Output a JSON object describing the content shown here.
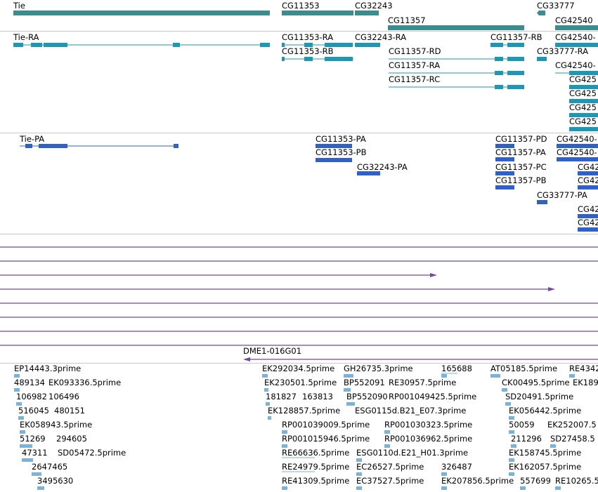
{
  "colors": {
    "gene": "#3b8c8c",
    "transcript": "#1a98b6",
    "protein": "#2f62c4",
    "alignment": "#6f4aa0",
    "est": "#7ab3d9",
    "separator": "#c8c8c8"
  },
  "genes": [
    "Tie",
    "CG11353",
    "CG32243",
    "CG33777",
    "CG11357",
    "CG42540"
  ],
  "transcripts": [
    "Tie-RA",
    "CG11353-RA",
    "CG32243-RA",
    "CG11357-RB",
    "CG42540-",
    "CG11353-RB",
    "CG11357-RD",
    "CG33777-RA",
    "CG11357-RA",
    "CG42540-",
    "CG11357-RC",
    "CG425",
    "CG425",
    "CG425",
    "CG425"
  ],
  "proteins": [
    "Tie-PA",
    "CG11353-PA",
    "CG11357-PD",
    "CG42540-",
    "CG11353-PB",
    "CG11357-PA",
    "CG42540-",
    "CG32243-PA",
    "CG11357-PC",
    "CG42",
    "CG11357-PB",
    "CG42",
    "CG33777-PA",
    "CG42",
    "CG42"
  ],
  "alignment_label": "DME1-016G01",
  "ests": [
    "EP14443.3prime",
    "EK292034.5prime",
    "GH26735.3prime",
    "165688",
    "AT05185.5prime",
    "RE4342",
    "489134",
    "EK093336.5prime",
    "EK230501.5prime",
    "BP552091",
    "RE30957.5prime",
    "CK00495.5prime",
    "EK189",
    "106982",
    "106496",
    "181827",
    "163813",
    "BP552090",
    "RP001049425.5prime",
    "SD20491.5prime",
    "516045",
    "480151",
    "EK128857.5prime",
    "ESG0115d.B21_E07.3prime",
    "EK056442.5prime",
    "EK058943.5prime",
    "RP001039009.5prime",
    "RP001030323.5prime",
    "50059",
    "EK252007.5",
    "51269",
    "294605",
    "RP001015946.5prime",
    "RP001036962.5prime",
    "211296",
    "SD27458.5",
    "47311",
    "SD05472.5prime",
    "RE66636.5prime",
    "ESG0110d.E21_H01.3prime",
    "EK158745.5prime",
    "2647465",
    "RE24979.5prime",
    "EC26527.5prime",
    "326487",
    "EK162057.5prime",
    "3495630",
    "RE41309.5prime",
    "EC37527.5prime",
    "EK207856.5prime",
    "557699",
    "RE10265.5"
  ]
}
